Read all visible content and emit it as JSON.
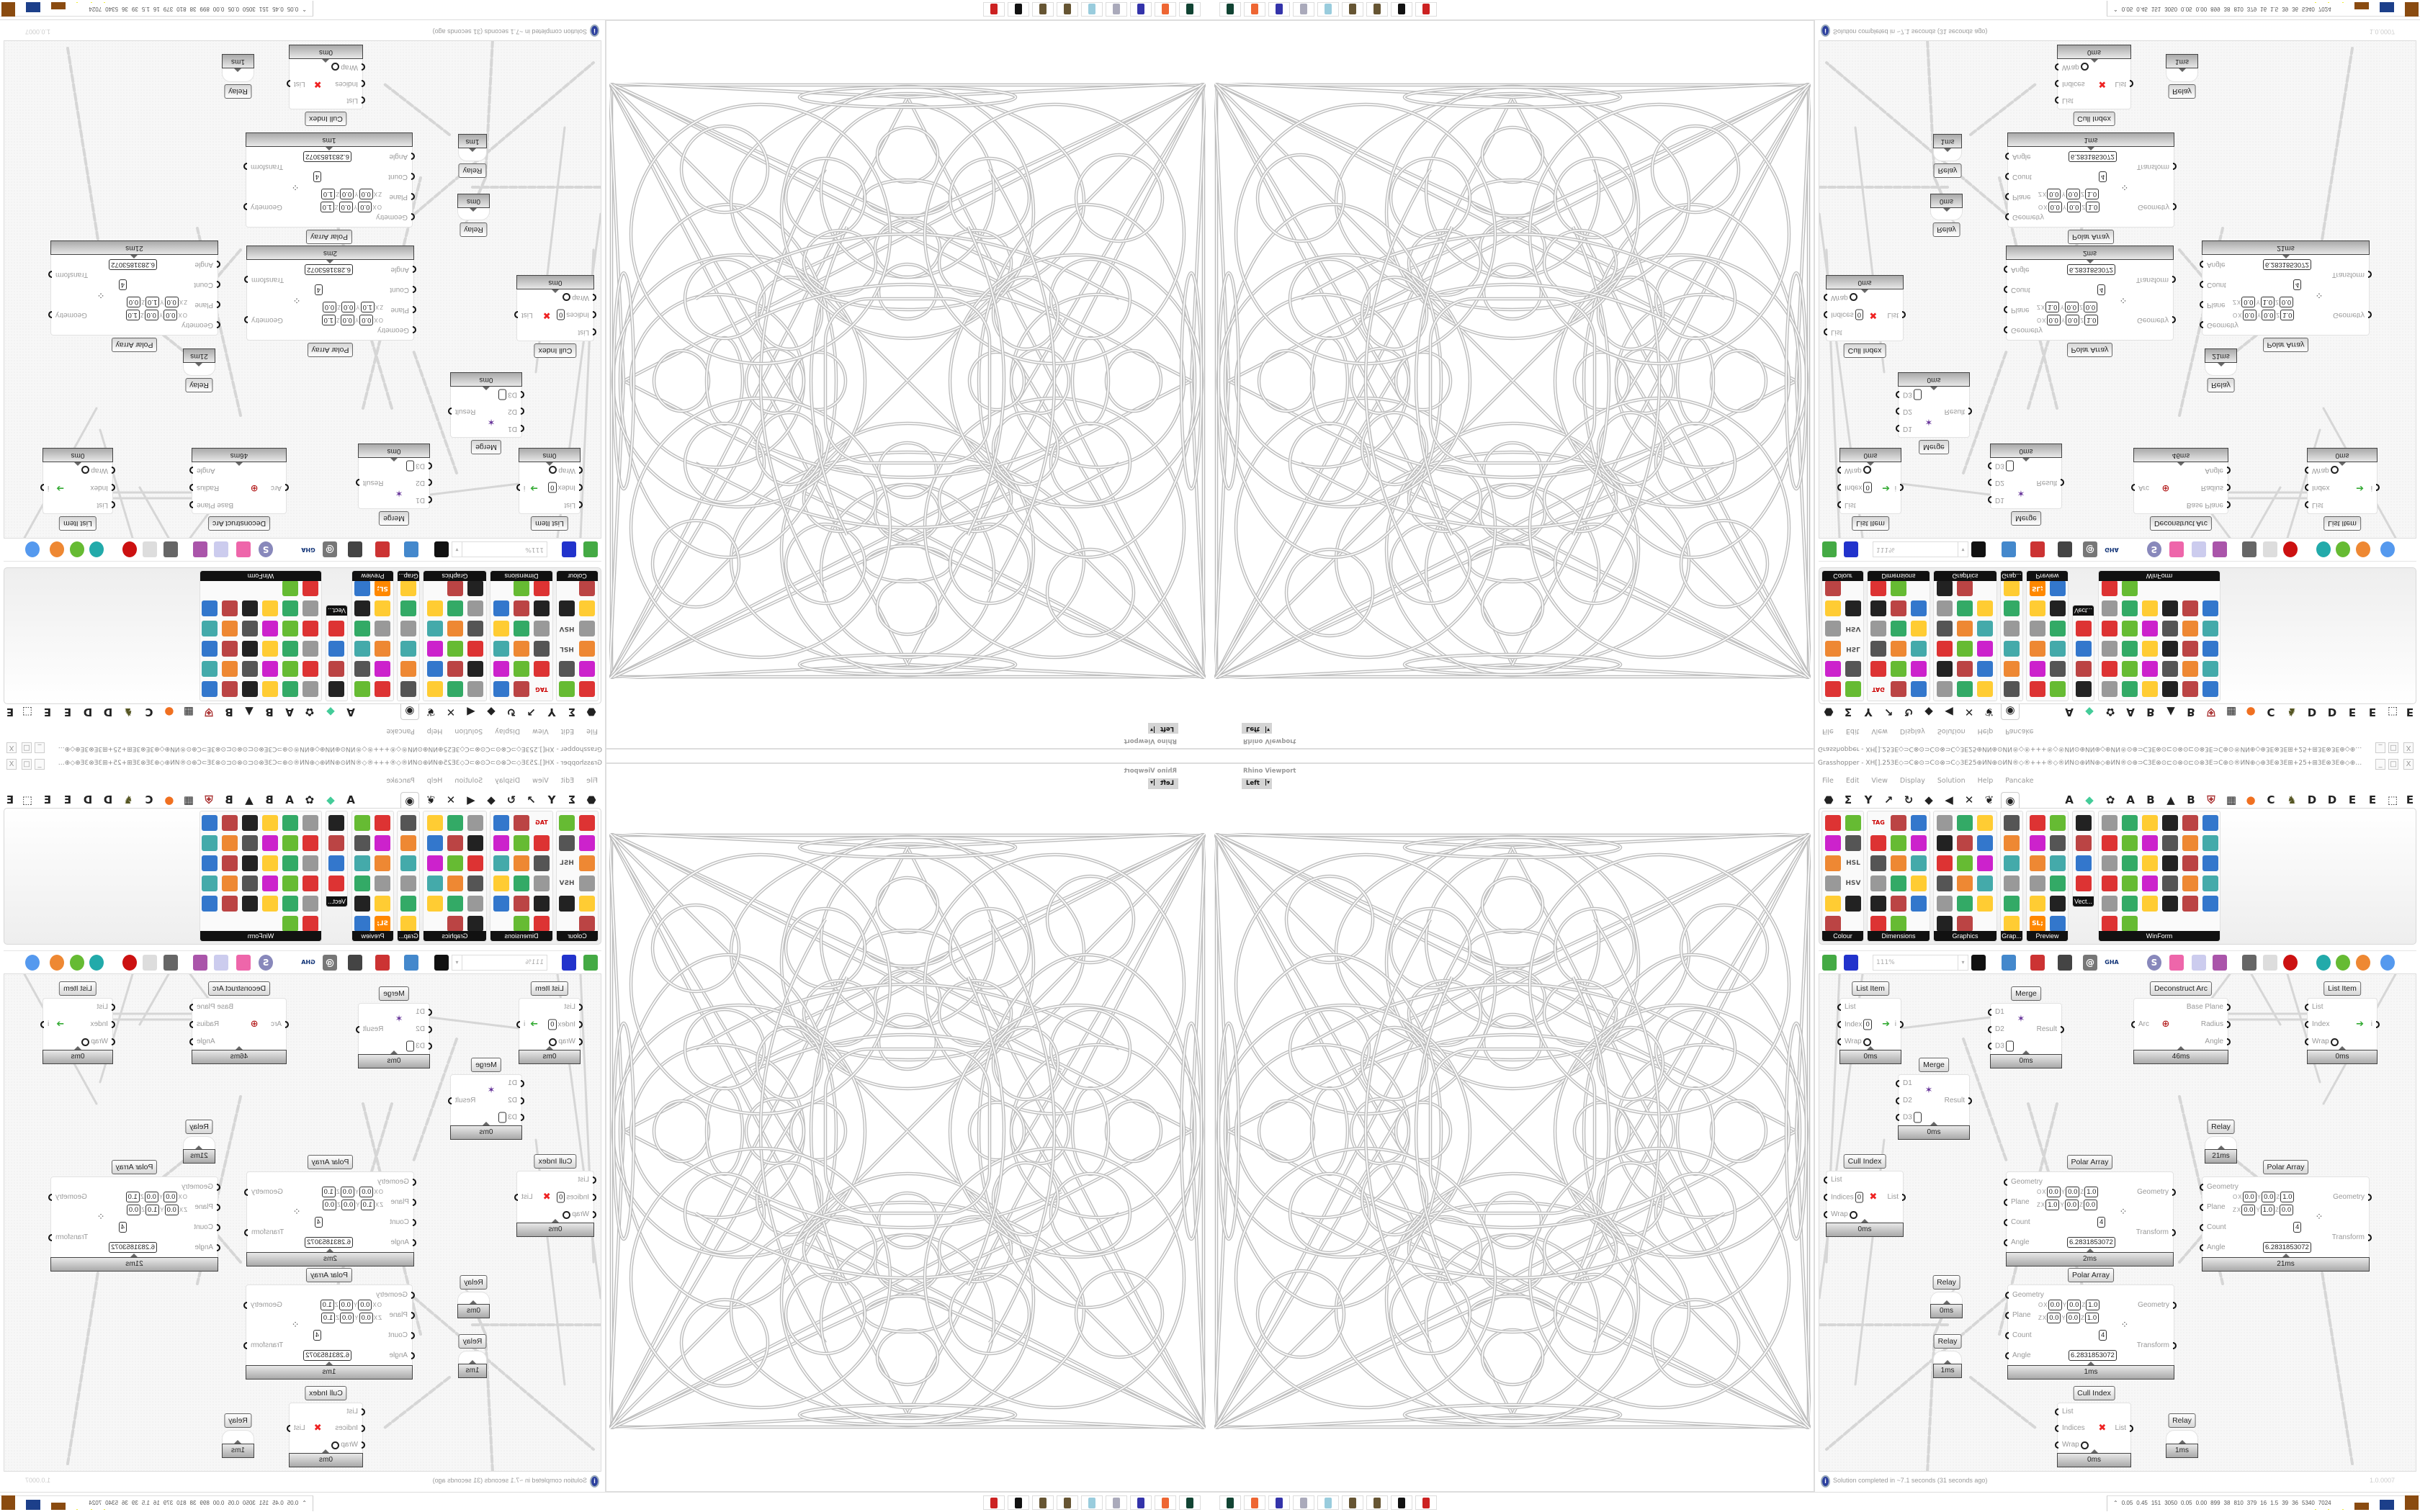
{
  "gh": {
    "title": "Grasshopper - XH[].253E◇⊃C⊗⊙⊃C⊙⊗⊃C◇3E25⊕ИN⊕⊙ИN®◇®+++®◇®ИN⊙⊕ИN⊕◇⊕ИN®⊙⊕⊃C3E⊗⊙⊏⊙⊗⊙⊏⊙⊗3E⊃C⊕⊙®ИN⊕◇⊕3E⊗3E⊞+25+⊞3E⊗3E⊕◇⊕⊗⊏3E⊞⊕⊕⊃C...",
    "window_controls": [
      "_",
      "□",
      "X"
    ],
    "menu": [
      "File",
      "Edit",
      "View",
      "Display",
      "Solution",
      "Help",
      "Pancake"
    ],
    "tabs": [
      {
        "icon": "params-icon",
        "glyph": "⬣"
      },
      {
        "icon": "maths-icon",
        "glyph": "Σ"
      },
      {
        "icon": "sets-icon",
        "glyph": "Y"
      },
      {
        "icon": "vector-icon",
        "glyph": "↗"
      },
      {
        "icon": "curve-icon",
        "glyph": "↻"
      },
      {
        "icon": "surface-icon",
        "glyph": "◆"
      },
      {
        "icon": "mesh-icon",
        "glyph": "◀"
      },
      {
        "icon": "intersect-icon",
        "glyph": "✕"
      },
      {
        "icon": "transform-icon",
        "glyph": "❦"
      },
      {
        "icon": "display-icon",
        "glyph": "◉",
        "selected": true
      },
      {
        "icon": "a-tab",
        "glyph": "A"
      },
      {
        "icon": "leaf-icon",
        "glyph": "◆"
      },
      {
        "icon": "gear-icon",
        "glyph": "✿"
      },
      {
        "icon": "a-tab",
        "glyph": "A"
      },
      {
        "icon": "b-tab",
        "glyph": "B"
      },
      {
        "icon": "mountain-icon",
        "glyph": "▲"
      },
      {
        "icon": "b-tab",
        "glyph": "B"
      },
      {
        "icon": "shield-icon",
        "glyph": "⛨"
      },
      {
        "icon": "grid-icon",
        "glyph": "▦"
      },
      {
        "icon": "orange-circle-icon",
        "glyph": "●"
      },
      {
        "icon": "c-tab",
        "glyph": "C"
      },
      {
        "icon": "bird-icon",
        "glyph": "♞"
      },
      {
        "icon": "d-tab",
        "glyph": "D"
      },
      {
        "icon": "d-tab",
        "glyph": "D"
      },
      {
        "icon": "e-tab",
        "glyph": "E"
      },
      {
        "icon": "e-tab",
        "glyph": "E"
      },
      {
        "icon": "dotted-square-icon",
        "glyph": "⬚"
      },
      {
        "icon": "e-tab",
        "glyph": "E"
      }
    ],
    "ribbon_groups": [
      {
        "label": "Colour",
        "cols": 2,
        "count": 11
      },
      {
        "label": "Dimensions",
        "cols": 3,
        "count": 17
      },
      {
        "label": "Graphics",
        "cols": 3,
        "count": 17
      },
      {
        "label": "Grap...",
        "cols": 1,
        "count": 6
      },
      {
        "label": "Preview",
        "cols": 2,
        "count": 12
      },
      {
        "label": "Vect...",
        "cols": 1,
        "count": 4
      },
      {
        "label": "WinForm",
        "cols": 6,
        "count": 32
      }
    ],
    "ribbon_texts": {
      "hsl": "HSL",
      "hsv": "HSV",
      "tag": "TAG",
      "sl": "SL;"
    },
    "zoom": "111%",
    "toolbar_icons": [
      "new-file-icon",
      "save-icon",
      "zoom-extents-icon",
      "preview-eye-icon",
      "sketch-brush-icon",
      "cable-icon",
      "at-icon",
      "gha-icon",
      "document-icon",
      "search-icon",
      "package-icon",
      "bulb-icon",
      "wires-icon",
      "bell-icon",
      "ring-icon",
      "red-gem-icon",
      "teal-shape-icon",
      "green-shape-icon",
      "orange-sphere-icon",
      "blue-sphere-icon"
    ],
    "toolbar_texts": {
      "gha": "GHA",
      "at": "@",
      "s": "S"
    },
    "nodes": [
      {
        "label": "List Item",
        "icon": "list-item-icon",
        "inputs": [
          {
            "name": "List"
          },
          {
            "name": "Index",
            "value": "0"
          },
          {
            "name": "Wrap",
            "toggle": true
          }
        ],
        "outputs": [
          {
            "name": "i"
          }
        ],
        "time": "0ms"
      },
      {
        "label": "Merge",
        "icon": "merge-icon",
        "inputs": [
          {
            "name": "D1"
          },
          {
            "name": "D2"
          },
          {
            "name": "D3",
            "value": " "
          }
        ],
        "outputs": [
          {
            "name": "Result"
          }
        ],
        "time": "0ms"
      },
      {
        "label": "Deconstruct Arc",
        "icon": "arc-target-icon",
        "inputs": [
          {
            "name": "Arc"
          }
        ],
        "outputs": [
          {
            "name": "Base Plane"
          },
          {
            "name": "Radius"
          },
          {
            "name": "Angle"
          }
        ],
        "time": "46ms"
      },
      {
        "label": "List Item",
        "icon": "list-item-icon",
        "inputs": [
          {
            "name": "List"
          },
          {
            "name": "Index"
          },
          {
            "name": "Wrap",
            "toggle": true
          }
        ],
        "outputs": [
          {
            "name": "i"
          }
        ],
        "time": "0ms"
      },
      {
        "label": "Merge",
        "icon": "merge-icon",
        "inputs": [
          {
            "name": "D1"
          },
          {
            "name": "D2"
          },
          {
            "name": "D3",
            "value": " "
          }
        ],
        "outputs": [
          {
            "name": "Result"
          }
        ],
        "time": "0ms"
      },
      {
        "label": "Relay",
        "relay": true,
        "inputs": [],
        "outputs": [],
        "time": "21ms"
      },
      {
        "label": "Cull Index",
        "icon": "cull-icon",
        "inputs": [
          {
            "name": "List"
          },
          {
            "name": "Indices",
            "value": "0"
          },
          {
            "name": "Wrap",
            "toggle": true
          }
        ],
        "outputs": [
          {
            "name": "List"
          }
        ],
        "time": "0ms"
      },
      {
        "label": "Polar Array",
        "inputs": [
          {
            "name": "Geometry"
          },
          {
            "name": "Plane",
            "plane": {
              "o": [
                "0.0",
                "0.0",
                "1.0"
              ],
              "z": [
                "1.0",
                "0.0",
                "0.0"
              ]
            }
          },
          {
            "name": "Count",
            "value": "4"
          },
          {
            "name": "Angle",
            "value": "6.2831853072"
          }
        ],
        "outputs": [
          {
            "name": "Geometry"
          },
          {
            "name": "Transform"
          }
        ],
        "time": "2ms"
      },
      {
        "label": "Polar Array",
        "inputs": [
          {
            "name": "Geometry"
          },
          {
            "name": "Plane",
            "plane": {
              "o": [
                "0.0",
                "0.0",
                "1.0"
              ],
              "z": [
                "0.0",
                "1.0",
                "0.0"
              ]
            }
          },
          {
            "name": "Count",
            "value": "4"
          },
          {
            "name": "Angle",
            "value": "6.2831853072"
          }
        ],
        "outputs": [
          {
            "name": "Geometry"
          },
          {
            "name": "Transform"
          }
        ],
        "time": "21ms"
      },
      {
        "label": "Polar Array",
        "inputs": [
          {
            "name": "Geometry"
          },
          {
            "name": "Plane",
            "plane": {
              "o": [
                "0.0",
                "0.0",
                "1.0"
              ],
              "z": [
                "0.0",
                "0.0",
                "1.0"
              ]
            }
          },
          {
            "name": "Count",
            "value": "4"
          },
          {
            "name": "Angle",
            "value": "6.2831853072"
          }
        ],
        "outputs": [
          {
            "name": "Geometry"
          },
          {
            "name": "Transform"
          }
        ],
        "time": "1ms"
      },
      {
        "label": "Relay",
        "relay": true,
        "inputs": [],
        "outputs": [],
        "time": "0ms"
      },
      {
        "label": "Relay",
        "relay": true,
        "inputs": [],
        "outputs": [],
        "time": "1ms"
      },
      {
        "label": "Cull Index",
        "icon": "cull-icon",
        "inputs": [
          {
            "name": "List"
          },
          {
            "name": "Indices"
          },
          {
            "name": "Wrap",
            "toggle": true
          }
        ],
        "outputs": [
          {
            "name": "List"
          }
        ],
        "time": "0ms"
      },
      {
        "label": "Relay",
        "relay": true,
        "inputs": [],
        "outputs": [],
        "time": "1ms"
      }
    ],
    "plane_axis": {
      "o": "O",
      "z": "Z",
      "x": "X",
      "y": "Y",
      "zc": "Z"
    },
    "status": "Solution completed in ~7.1 seconds (31 seconds ago)",
    "version": "1.0.0007"
  },
  "viewport": {
    "title": "Rhino Viewport",
    "view": "Left"
  },
  "taskbar": {
    "icons": [
      "task-manager-icon",
      "firefox-icon",
      "floppy-64-icon",
      "scroll-icon",
      "notepad-icon",
      "gear-bronze-icon",
      "gear-bronze-icon",
      "rhino-icon",
      "red-badge-icon"
    ]
  },
  "perf": {
    "values": [
      "0.05",
      "0.45",
      "151",
      "3050",
      "0.05",
      "0.00",
      "899",
      "38",
      "810",
      "379",
      "16",
      "1.5",
      "39",
      "36",
      "5340",
      "7024"
    ]
  },
  "colors": {
    "accent_dark": "#111111",
    "node_footer": "#a9a9a9",
    "wire": "#d6d6d6"
  }
}
